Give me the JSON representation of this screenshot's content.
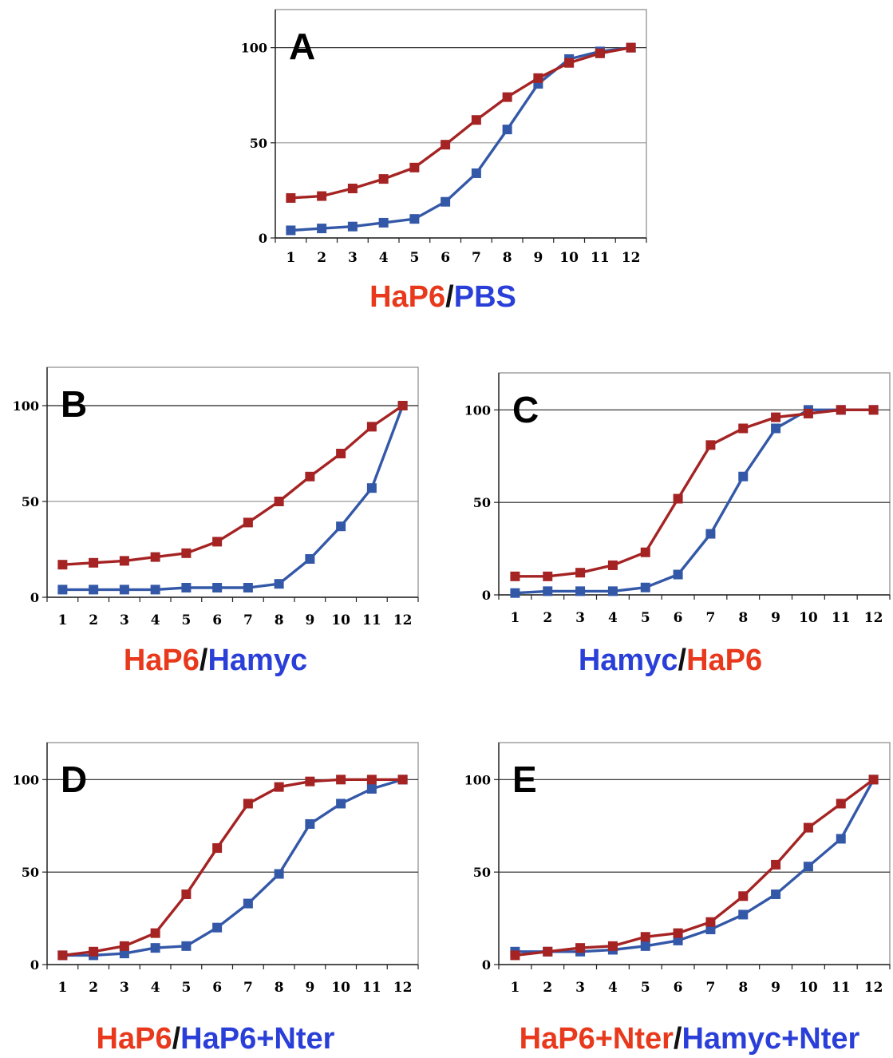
{
  "colors": {
    "red_series": "#a52323",
    "blue_series": "#3458a8",
    "red_text": "#e8391d",
    "blue_text": "#2a3fd8"
  },
  "chart_data": [
    {
      "id": "A",
      "type": "line",
      "letter": "A",
      "categories": [
        "1",
        "2",
        "3",
        "4",
        "5",
        "6",
        "7",
        "8",
        "9",
        "10",
        "11",
        "12"
      ],
      "yticks": [
        "0",
        "50",
        "100"
      ],
      "ylim": [
        0,
        120
      ],
      "grid": "horizontal at 50 and 100",
      "caption": {
        "part1": "HaP6",
        "slash": "/",
        "part2": "PBS",
        "part1_color": "red",
        "part2_color": "blue"
      },
      "series": [
        {
          "color": "red",
          "values": [
            21,
            22,
            26,
            31,
            37,
            49,
            62,
            74,
            84,
            92,
            97,
            100
          ]
        },
        {
          "color": "blue",
          "values": [
            4,
            5,
            6,
            8,
            10,
            19,
            34,
            57,
            81,
            94,
            98,
            100
          ]
        }
      ]
    },
    {
      "id": "B",
      "type": "line",
      "letter": "B",
      "categories": [
        "1",
        "2",
        "3",
        "4",
        "5",
        "6",
        "7",
        "8",
        "9",
        "10",
        "11",
        "12"
      ],
      "yticks": [
        "0",
        "50",
        "100"
      ],
      "ylim": [
        0,
        120
      ],
      "grid": "horizontal at 50 and 100",
      "caption": {
        "part1": "HaP6",
        "slash": "/",
        "part2": "Hamyc",
        "part1_color": "red",
        "part2_color": "blue"
      },
      "series": [
        {
          "color": "red",
          "values": [
            17,
            18,
            19,
            21,
            23,
            29,
            39,
            50,
            63,
            75,
            89,
            100
          ]
        },
        {
          "color": "blue",
          "values": [
            4,
            4,
            4,
            4,
            5,
            5,
            5,
            7,
            20,
            37,
            57,
            100
          ]
        }
      ]
    },
    {
      "id": "C",
      "type": "line",
      "letter": "C",
      "categories": [
        "1",
        "2",
        "3",
        "4",
        "5",
        "6",
        "7",
        "8",
        "9",
        "10",
        "11",
        "12"
      ],
      "yticks": [
        "0",
        "50",
        "100"
      ],
      "ylim": [
        0,
        120
      ],
      "grid": "horizontal at 50 and 100",
      "caption": {
        "part1": "Hamyc",
        "slash": "/",
        "part2": "HaP6",
        "part1_color": "blue",
        "part2_color": "red"
      },
      "series": [
        {
          "color": "red",
          "values": [
            10,
            10,
            12,
            16,
            23,
            52,
            81,
            90,
            96,
            98,
            100,
            100
          ]
        },
        {
          "color": "blue",
          "values": [
            1,
            2,
            2,
            2,
            4,
            11,
            33,
            64,
            90,
            100,
            100,
            100
          ]
        }
      ]
    },
    {
      "id": "D",
      "type": "line",
      "letter": "D",
      "categories": [
        "1",
        "2",
        "3",
        "4",
        "5",
        "6",
        "7",
        "8",
        "9",
        "10",
        "11",
        "12"
      ],
      "yticks": [
        "0",
        "50",
        "100"
      ],
      "ylim": [
        0,
        120
      ],
      "grid": "horizontal at 50 and 100",
      "caption": {
        "part1": "HaP6",
        "slash": "/",
        "part2": "HaP6+Nter",
        "part1_color": "red",
        "part2_color": "blue"
      },
      "series": [
        {
          "color": "red",
          "values": [
            5,
            7,
            10,
            17,
            38,
            63,
            87,
            96,
            99,
            100,
            100,
            100
          ]
        },
        {
          "color": "blue",
          "values": [
            5,
            5,
            6,
            9,
            10,
            20,
            33,
            49,
            76,
            87,
            95,
            100
          ]
        }
      ]
    },
    {
      "id": "E",
      "type": "line",
      "letter": "E",
      "categories": [
        "1",
        "2",
        "3",
        "4",
        "5",
        "6",
        "7",
        "8",
        "9",
        "10",
        "11",
        "12"
      ],
      "yticks": [
        "0",
        "50",
        "100"
      ],
      "ylim": [
        0,
        120
      ],
      "grid": "horizontal at 50 and 100",
      "caption": {
        "part1": "HaP6+Nter",
        "slash": "/",
        "part2": "Hamyc+Nter",
        "part1_color": "red",
        "part2_color": "blue"
      },
      "series": [
        {
          "color": "red",
          "values": [
            5,
            7,
            9,
            10,
            15,
            17,
            23,
            37,
            54,
            74,
            87,
            100
          ]
        },
        {
          "color": "blue",
          "values": [
            7,
            7,
            7,
            8,
            10,
            13,
            19,
            27,
            38,
            53,
            68,
            100
          ]
        }
      ]
    }
  ]
}
